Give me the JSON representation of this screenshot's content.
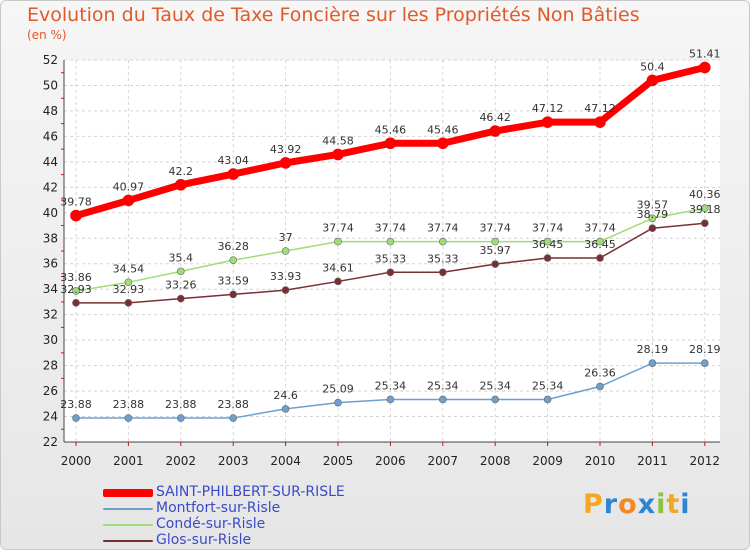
{
  "chart": {
    "title": "Evolution du Taux de Taxe Foncière sur les Propriétés Non Bâties",
    "subtitle": "(en %)",
    "logo": "Proxiti"
  },
  "chart_data": {
    "type": "line",
    "x": [
      "2000",
      "2001",
      "2002",
      "2003",
      "2004",
      "2005",
      "2006",
      "2007",
      "2008",
      "2009",
      "2010",
      "2011",
      "2012"
    ],
    "ylim": [
      22,
      52
    ],
    "yticks": [
      22,
      24,
      26,
      28,
      30,
      32,
      34,
      36,
      38,
      40,
      42,
      44,
      46,
      48,
      50,
      52
    ],
    "grid": true,
    "legend_position": "bottom-left",
    "series": [
      {
        "name": "SAINT-PHILBERT-SUR-RISLE",
        "color": "#ff0000",
        "values": [
          39.78,
          40.97,
          42.2,
          43.04,
          43.92,
          44.58,
          45.46,
          45.46,
          46.42,
          47.12,
          47.12,
          50.4,
          51.41
        ],
        "labels": [
          "39.78",
          "40.97",
          "42.2",
          "43.04",
          "43.92",
          "44.58",
          "45.46",
          "45.46",
          "46.42",
          "47.12",
          "47.12",
          "50.4",
          "51.41"
        ]
      },
      {
        "name": "Montfort-sur-Risle",
        "color": "#6ea0cf",
        "values": [
          23.88,
          23.88,
          23.88,
          23.88,
          24.6,
          25.09,
          25.34,
          25.34,
          25.34,
          25.34,
          26.36,
          28.19,
          28.19
        ],
        "labels": [
          "23.88",
          "23.88",
          "23.88",
          "23.88",
          "24.6",
          "25.09",
          "25.34",
          "25.34",
          "25.34",
          "25.34",
          "26.36",
          "28.19",
          "28.19"
        ]
      },
      {
        "name": "Condé-sur-Risle",
        "color": "#9ede75",
        "values": [
          33.86,
          34.54,
          35.4,
          36.28,
          37,
          37.74,
          37.74,
          37.74,
          37.74,
          37.74,
          37.74,
          39.57,
          40.36
        ],
        "labels": [
          "33.86",
          "34.54",
          "35.4",
          "36.28",
          "37",
          "37.74",
          "37.74",
          "37.74",
          "37.74",
          "37.74",
          "37.74",
          "39.57",
          "40.36"
        ]
      },
      {
        "name": "Glos-sur-Risle",
        "color": "#7a2f34",
        "values": [
          32.93,
          32.93,
          33.26,
          33.59,
          33.93,
          34.61,
          35.33,
          35.33,
          35.97,
          36.45,
          36.45,
          38.79,
          39.18
        ],
        "labels": [
          "32.93",
          "32.93",
          "33.26",
          "33.59",
          "33.93",
          "34.61",
          "35.33",
          "35.33",
          "35.97",
          "36.45",
          "36.45",
          "38.79",
          "39.18"
        ]
      }
    ]
  },
  "colors": {
    "title": "#e05a2a",
    "legend_text": "#3a4bc8",
    "logo_letters": [
      "#f5a623",
      "#2e86d1",
      "#f08a24",
      "#2e86d1",
      "#8ac43f",
      "#f5a623",
      "#2e86d1"
    ]
  }
}
